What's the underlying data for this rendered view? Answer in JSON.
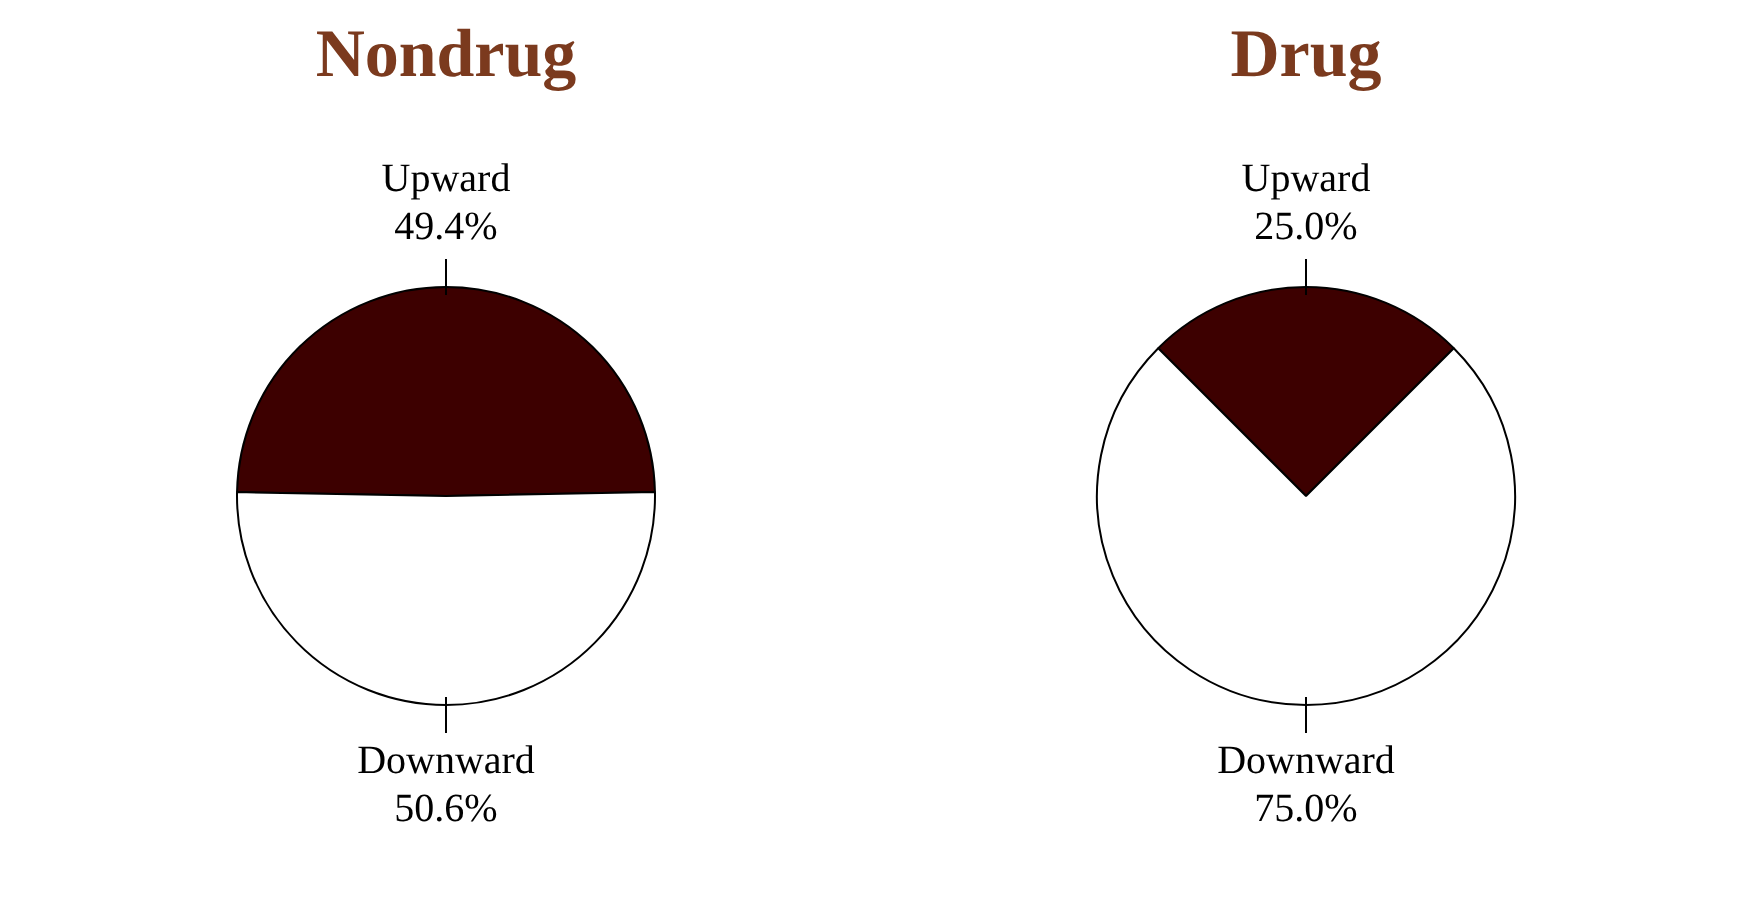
{
  "chart_data": [
    {
      "type": "pie",
      "title": "Nondrug",
      "categories": [
        "Upward",
        "Downward"
      ],
      "values": [
        49.4,
        50.6
      ],
      "value_labels": [
        "49.4%",
        "50.6%"
      ],
      "colors": [
        "#3d0000",
        "#ffffff"
      ],
      "legend": false
    },
    {
      "type": "pie",
      "title": "Drug",
      "categories": [
        "Upward",
        "Downward"
      ],
      "values": [
        25.0,
        75.0
      ],
      "value_labels": [
        "25.0%",
        "75.0%"
      ],
      "colors": [
        "#3d0000",
        "#ffffff"
      ],
      "legend": false
    }
  ]
}
